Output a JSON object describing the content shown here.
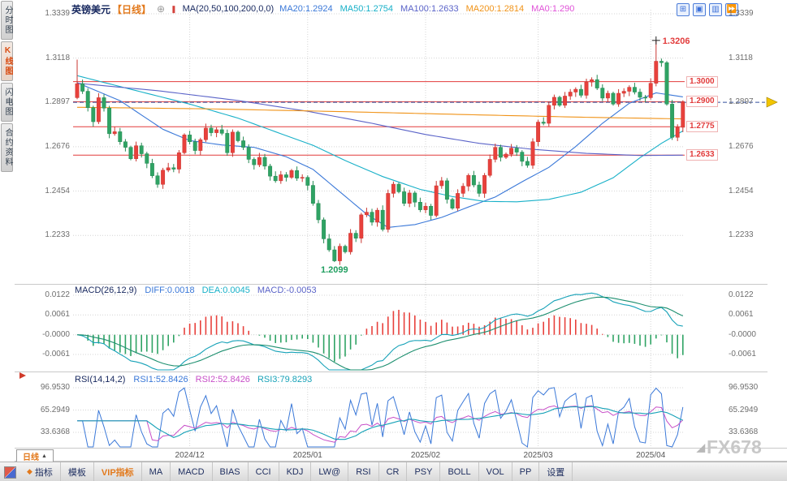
{
  "header": {
    "symbol": "英镑美元",
    "period": "【日线】",
    "ma_title": "MA(20,50,100,200,0,0)",
    "ma_values": [
      {
        "label": "MA20:1.2924",
        "color": "#3a78d8"
      },
      {
        "label": "MA50:1.2754",
        "color": "#17b0c8"
      },
      {
        "label": "MA100:1.2633",
        "color": "#5a63c8"
      },
      {
        "label": "MA200:1.2814",
        "color": "#f09318"
      },
      {
        "label": "MA0:1.290",
        "color": "#e052d8"
      }
    ],
    "window_icons": [
      {
        "glyph": "⊞",
        "name": "layout-grid-icon"
      },
      {
        "glyph": "▣",
        "name": "layout-single-icon"
      },
      {
        "glyph": "▥",
        "name": "layout-rows-icon"
      },
      {
        "glyph": "⏩",
        "name": "forward-icon"
      }
    ]
  },
  "sidebar": {
    "items": [
      {
        "label": "分时图",
        "selected": false
      },
      {
        "label": "K线图",
        "selected": true
      },
      {
        "label": "闪电图",
        "selected": false
      },
      {
        "label": "合约资料",
        "selected": false
      }
    ]
  },
  "macd_header": {
    "title": "MACD(26,12,9)",
    "items": [
      {
        "label": "DIFF:0.0018",
        "color": "#3a78d8"
      },
      {
        "label": "DEA:0.0045",
        "color": "#17b0c8"
      },
      {
        "label": "MACD:-0.0053",
        "color": "#5a63c8"
      }
    ]
  },
  "rsi_header": {
    "title": "RSI(14,14,2)",
    "items": [
      {
        "label": "RSI1:52.8426",
        "color": "#3a78d8"
      },
      {
        "label": "RSI2:52.8426",
        "color": "#c84fc8"
      },
      {
        "label": "RSI3:79.8293",
        "color": "#17a2b8"
      }
    ]
  },
  "footer": {
    "period_box": "日线",
    "watermark": "FX678"
  },
  "toolbar": {
    "items": [
      {
        "label": "指标",
        "diamond": true
      },
      {
        "label": "模板"
      },
      {
        "label": "VIP指标",
        "accent": true
      },
      {
        "label": "MA"
      },
      {
        "label": "MACD"
      },
      {
        "label": "BIAS"
      },
      {
        "label": "CCI"
      },
      {
        "label": "KDJ"
      },
      {
        "label": "LW@"
      },
      {
        "label": "RSI"
      },
      {
        "label": "CR"
      },
      {
        "label": "PSY"
      },
      {
        "label": "BOLL"
      },
      {
        "label": "VOL"
      },
      {
        "label": "PP"
      },
      {
        "label": "设置"
      }
    ]
  },
  "chart_data": {
    "type": "candlestick",
    "title": "英镑美元 日线 (GBP/USD Daily)",
    "price_axis": [
      "1.3339",
      "1.3118",
      "1.2897",
      "1.2676",
      "1.2454",
      "1.2233"
    ],
    "macd_axis": [
      "0.0122",
      "0.0061",
      "-0.0000",
      "-0.0061"
    ],
    "rsi_axis": [
      "96.9530",
      "65.2949",
      "33.6368"
    ],
    "x_axis": [
      {
        "label": "2024/12",
        "index": 21
      },
      {
        "label": "2025/01",
        "index": 43
      },
      {
        "label": "2025/02",
        "index": 65
      },
      {
        "label": "2025/03",
        "index": 86
      },
      {
        "label": "2025/04",
        "index": 107
      }
    ],
    "h_lines": [
      {
        "price": 1.3,
        "label": "1.3000"
      },
      {
        "price": 1.29,
        "label": "1.2900"
      },
      {
        "price": 1.2775,
        "label": "1.2775"
      },
      {
        "price": 1.2633,
        "label": "1.2633"
      }
    ],
    "current_price": {
      "value": 1.2897,
      "label": "1.2897"
    },
    "annotations": {
      "high": {
        "index": 108,
        "price": 1.3206,
        "label": "1.3206"
      },
      "low": {
        "index": 48,
        "price": 1.2099,
        "label": "1.2099"
      }
    },
    "first_open": 1.292,
    "closes": [
      1.299,
      1.2952,
      1.287,
      1.28,
      1.292,
      1.2868,
      1.274,
      1.275,
      1.27,
      1.2672,
      1.2615,
      1.268,
      1.264,
      1.2592,
      1.253,
      1.2487,
      1.2558,
      1.257,
      1.2563,
      1.2645,
      1.2734,
      1.27,
      1.2656,
      1.271,
      1.2768,
      1.2745,
      1.276,
      1.2742,
      1.2645,
      1.2748,
      1.2705,
      1.2672,
      1.2612,
      1.2585,
      1.2622,
      1.2578,
      1.2528,
      1.2505,
      1.2535,
      1.2522,
      1.2556,
      1.2518,
      1.2522,
      1.2482,
      1.2392,
      1.231,
      1.2215,
      1.216,
      1.2105,
      1.2178,
      1.215,
      1.2243,
      1.2218,
      1.2335,
      1.2348,
      1.2298,
      1.2358,
      1.2262,
      1.2442,
      1.2488,
      1.245,
      1.2392,
      1.2444,
      1.2398,
      1.236,
      1.2378,
      1.2332,
      1.248,
      1.2505,
      1.2412,
      1.2368,
      1.2442,
      1.2478,
      1.2532,
      1.2484,
      1.2442,
      1.2532,
      1.2612,
      1.2672,
      1.2622,
      1.2638,
      1.2668,
      1.2648,
      1.2602,
      1.2582,
      1.27,
      1.2798,
      1.2792,
      1.2882,
      1.2922,
      1.2882,
      1.2928,
      1.2948,
      1.2962,
      1.2932,
      1.2998,
      1.301,
      1.2968,
      1.2918,
      1.2942,
      1.2888,
      1.2942,
      1.2952,
      1.2972,
      1.2948,
      1.2922,
      1.292,
      1.2992,
      1.3102,
      1.3095,
      1.2888,
      1.2722,
      1.2772,
      1.2897
    ],
    "special_wicks": {
      "0": {
        "h": 1.311
      },
      "48": {
        "l": 1.2099
      },
      "108": {
        "h": 1.3206
      },
      "111": {
        "l": 1.2709
      }
    },
    "ma_overlays": [
      {
        "name": "MA20",
        "color": "#3a78d8",
        "points": [
          [
            0,
            1.2995
          ],
          [
            8,
            1.2905
          ],
          [
            16,
            1.2762
          ],
          [
            21,
            1.2706
          ],
          [
            27,
            1.2684
          ],
          [
            33,
            1.2672
          ],
          [
            39,
            1.2625
          ],
          [
            44,
            1.2562
          ],
          [
            49,
            1.245
          ],
          [
            54,
            1.2338
          ],
          [
            58,
            1.2272
          ],
          [
            63,
            1.2286
          ],
          [
            68,
            1.2322
          ],
          [
            73,
            1.2374
          ],
          [
            78,
            1.2424
          ],
          [
            83,
            1.25
          ],
          [
            88,
            1.2572
          ],
          [
            93,
            1.2676
          ],
          [
            98,
            1.2792
          ],
          [
            103,
            1.2892
          ],
          [
            108,
            1.2944
          ],
          [
            113,
            1.2924
          ]
        ]
      },
      {
        "name": "MA50",
        "color": "#17b0c8",
        "points": [
          [
            0,
            1.303
          ],
          [
            10,
            1.2962
          ],
          [
            21,
            1.2888
          ],
          [
            30,
            1.2818
          ],
          [
            38,
            1.274
          ],
          [
            44,
            1.2682
          ],
          [
            50,
            1.2606
          ],
          [
            57,
            1.2526
          ],
          [
            64,
            1.2462
          ],
          [
            70,
            1.2426
          ],
          [
            76,
            1.2402
          ],
          [
            82,
            1.24
          ],
          [
            88,
            1.2412
          ],
          [
            94,
            1.2448
          ],
          [
            100,
            1.252
          ],
          [
            105,
            1.262
          ],
          [
            109,
            1.2692
          ],
          [
            113,
            1.2754
          ]
        ]
      },
      {
        "name": "MA100",
        "color": "#5a63c8",
        "points": [
          [
            0,
            1.2992
          ],
          [
            15,
            1.2955
          ],
          [
            30,
            1.2906
          ],
          [
            43,
            1.2852
          ],
          [
            55,
            1.2792
          ],
          [
            65,
            1.2736
          ],
          [
            75,
            1.2692
          ],
          [
            85,
            1.2662
          ],
          [
            95,
            1.2642
          ],
          [
            105,
            1.2631
          ],
          [
            113,
            1.2633
          ]
        ]
      },
      {
        "name": "MA200",
        "color": "#f09318",
        "points": [
          [
            0,
            1.2872
          ],
          [
            25,
            1.2864
          ],
          [
            50,
            1.285
          ],
          [
            75,
            1.2834
          ],
          [
            95,
            1.2822
          ],
          [
            113,
            1.2814
          ]
        ]
      }
    ],
    "colors": {
      "up": "#e8413c",
      "up_stroke": "#c93732",
      "down": "#2fa364",
      "down_stroke": "#268a54",
      "h_line": "#e23b3b",
      "current_line": "#334f9e",
      "grid": "#d4d4d4",
      "separator": "#c9c9c9",
      "macd_diff": "#17a2b8",
      "macd_dea": "#1d8f6f",
      "rsi1": "#3a78d8",
      "rsi2": "#c84fc8",
      "rsi3": "#17a2b8",
      "arrow": "#f2c500"
    }
  }
}
